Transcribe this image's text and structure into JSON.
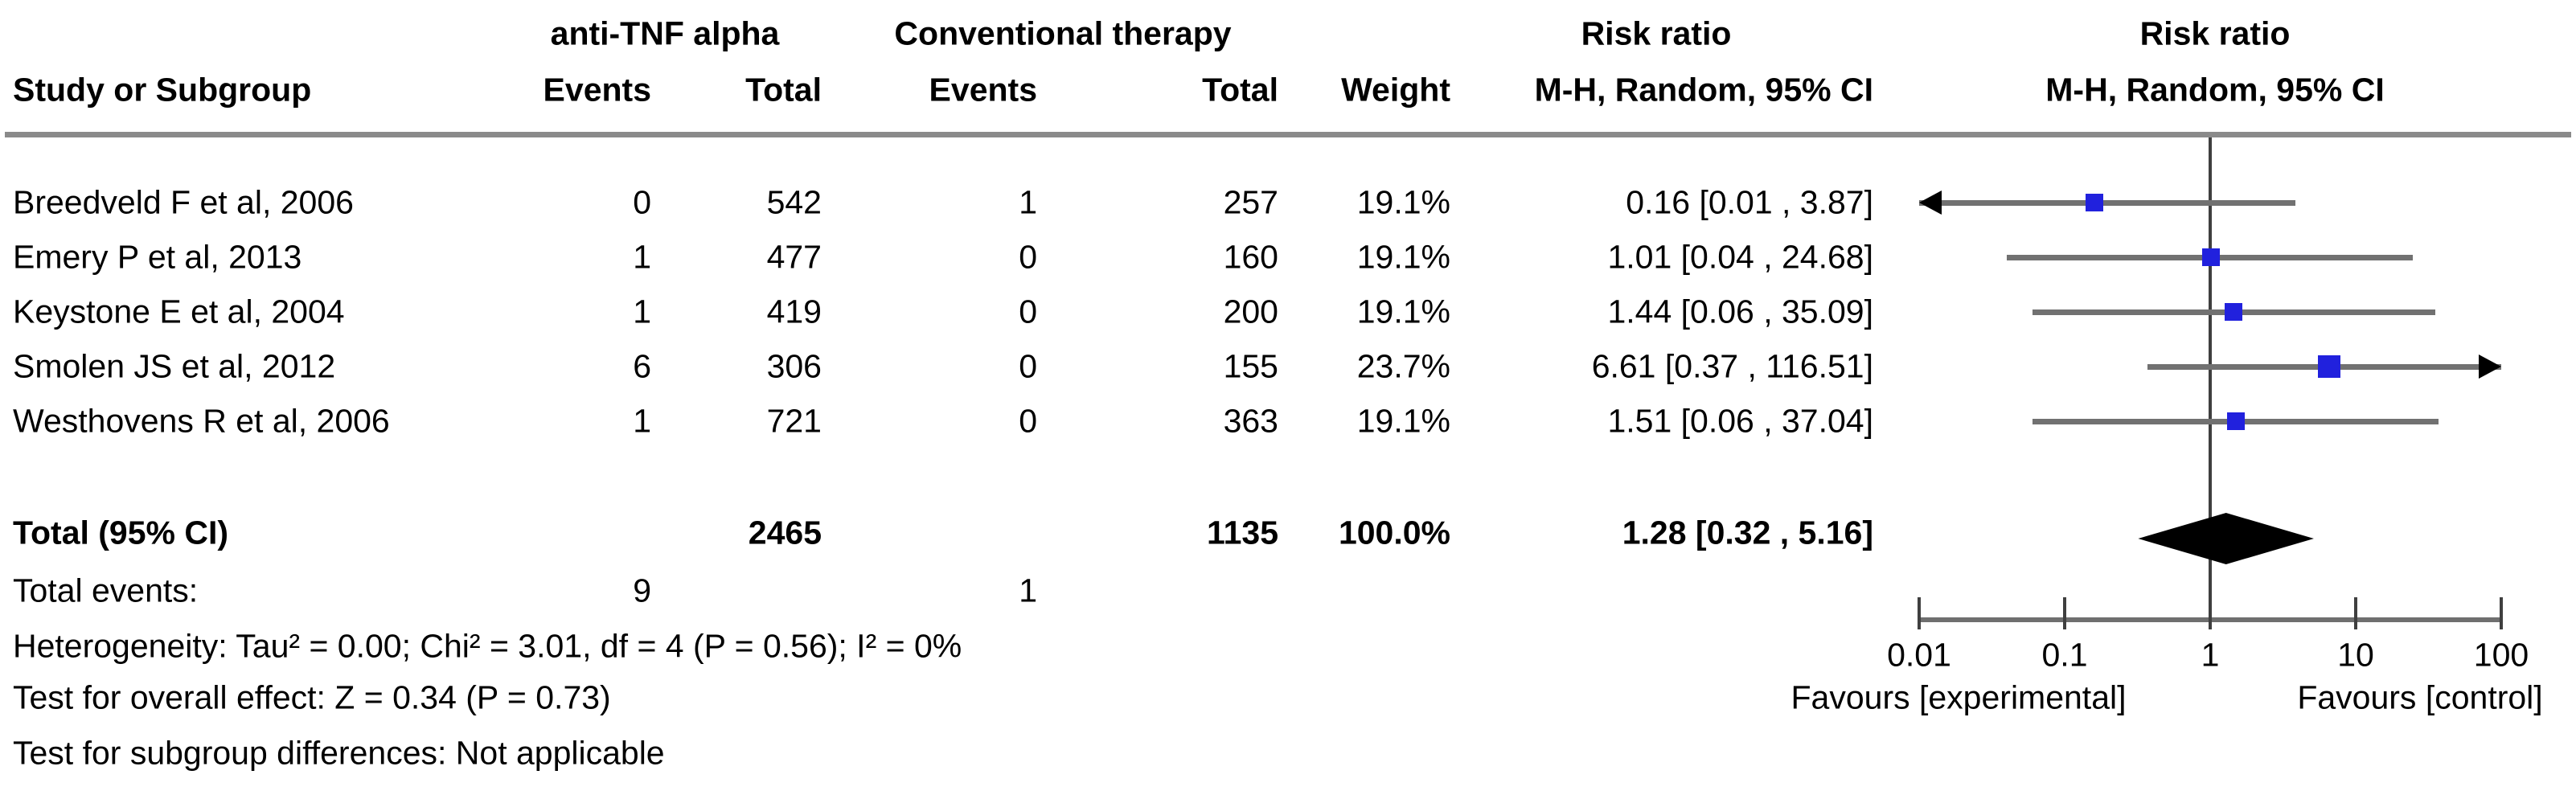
{
  "figure": {
    "columns": {
      "study": "Study or Subgroup",
      "group1": "anti-TNF alpha",
      "group2": "Conventional therapy",
      "events": "Events",
      "total": "Total",
      "weight": "Weight",
      "risk_ratio": "Risk ratio",
      "method": "M-H, Random, 95% CI"
    },
    "footer": {
      "total_label": "Total (95% CI)",
      "total_events_label": "Total events:",
      "heterogeneity": "Heterogeneity: Tau² = 0.00; Chi² = 3.01, df = 4 (P = 0.56); I² = 0%",
      "overall_effect": "Test for overall effect: Z = 0.34 (P = 0.73)",
      "subgroup": "Test for subgroup differences: Not applicable"
    }
  },
  "chart_data": {
    "type": "forest",
    "effect_measure": "Risk ratio",
    "model": "M-H, Random, 95% CI",
    "x_scale": "log10",
    "x_ticks": [
      0.01,
      0.1,
      1,
      10,
      100
    ],
    "xlim": [
      0.01,
      100
    ],
    "favours_left": "Favours [experimental]",
    "favours_right": "Favours [control]",
    "studies": [
      {
        "name": "Breedveld F et al, 2006",
        "events1": 0,
        "total1": 542,
        "events2": 1,
        "total2": 257,
        "weight": "19.1%",
        "rr": 0.16,
        "ci_low": 0.01,
        "ci_high": 3.87,
        "label": "0.16 [0.01 , 3.87]"
      },
      {
        "name": "Emery P et al, 2013",
        "events1": 1,
        "total1": 477,
        "events2": 0,
        "total2": 160,
        "weight": "19.1%",
        "rr": 1.01,
        "ci_low": 0.04,
        "ci_high": 24.68,
        "label": "1.01 [0.04 , 24.68]"
      },
      {
        "name": "Keystone E et al, 2004",
        "events1": 1,
        "total1": 419,
        "events2": 0,
        "total2": 200,
        "weight": "19.1%",
        "rr": 1.44,
        "ci_low": 0.06,
        "ci_high": 35.09,
        "label": "1.44 [0.06 , 35.09]"
      },
      {
        "name": "Smolen JS et al, 2012",
        "events1": 6,
        "total1": 306,
        "events2": 0,
        "total2": 155,
        "weight": "23.7%",
        "rr": 6.61,
        "ci_low": 0.37,
        "ci_high": 116.51,
        "label": "6.61 [0.37 , 116.51]"
      },
      {
        "name": "Westhovens R et al, 2006",
        "events1": 1,
        "total1": 721,
        "events2": 0,
        "total2": 363,
        "weight": "19.1%",
        "rr": 1.51,
        "ci_low": 0.06,
        "ci_high": 37.04,
        "label": "1.51 [0.06 , 37.04]"
      }
    ],
    "total": {
      "total1": 2465,
      "total2": 1135,
      "weight": "100.0%",
      "rr": 1.28,
      "ci_low": 0.32,
      "ci_high": 5.16,
      "label": "1.28 [0.32 , 5.16]",
      "events1": 9,
      "events2": 1
    }
  }
}
